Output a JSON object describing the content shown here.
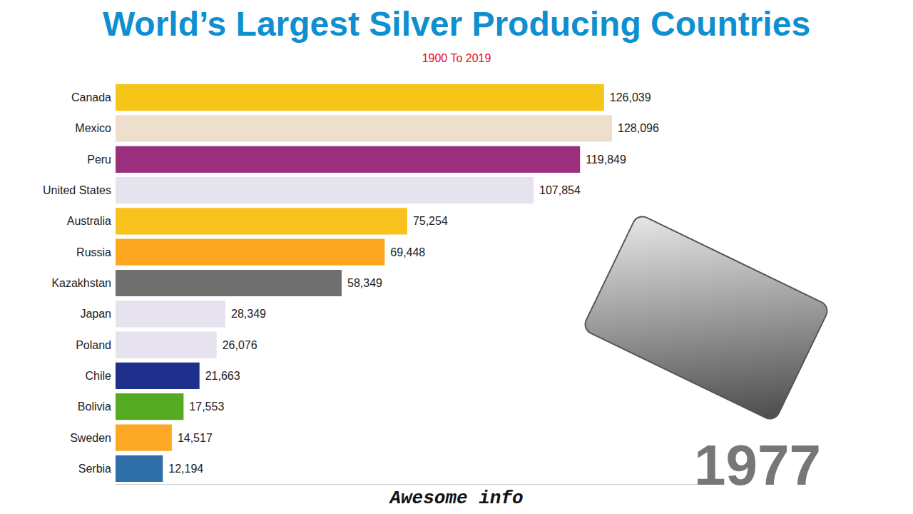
{
  "chart_data": {
    "type": "bar",
    "title": "World’s Largest Silver Producing Countries",
    "subtitle": "1900 To 2019",
    "annotations": [
      "1977",
      "Awesome info"
    ],
    "orientation": "horizontal",
    "categories": [
      "Canada",
      "Mexico",
      "Peru",
      "United States",
      "Australia",
      "Russia",
      "Kazakhstan",
      "Japan",
      "Poland",
      "Chile",
      "Bolivia",
      "Sweden",
      "Serbia"
    ],
    "values": [
      126039,
      128096,
      119849,
      107854,
      75254,
      69448,
      58349,
      28349,
      26076,
      21663,
      17553,
      14517,
      12194
    ],
    "value_labels": [
      "126,039",
      "128,096",
      "119,849",
      "107,854",
      "75,254",
      "69,448",
      "58,349",
      "28,349",
      "26,076",
      "21,663",
      "17,553",
      "14,517",
      "12,194"
    ],
    "colors": [
      "#f5c518",
      "#eedfcc",
      "#9b2f7e",
      "#e6e2ee",
      "#f9c11c",
      "#fca71f",
      "#707070",
      "#e6e2ee",
      "#e6e2ee",
      "#1e2f8c",
      "#55aa22",
      "#fba927",
      "#2f6fa8"
    ],
    "xlim": [
      0,
      150000
    ],
    "data_labels": true,
    "tick_labels": "y",
    "grid": false
  }
}
